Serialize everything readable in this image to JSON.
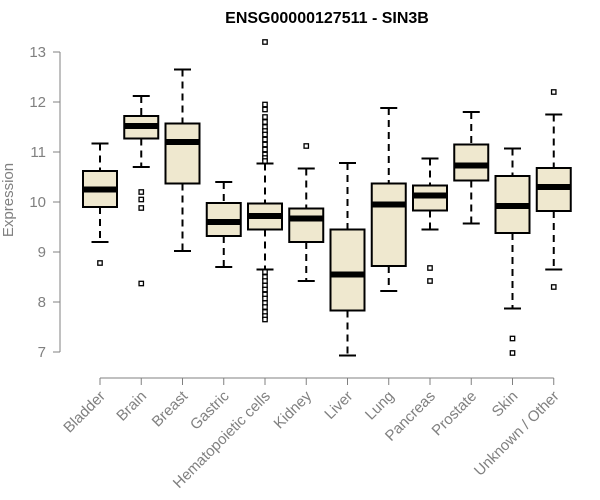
{
  "chart_data": {
    "type": "boxplot",
    "title": "ENSG00000127511 - SIN3B",
    "xlabel": "",
    "ylabel": "Expression",
    "ylim": [
      7,
      13
    ],
    "yticks": [
      7,
      8,
      9,
      10,
      11,
      12,
      13
    ],
    "colors": {
      "box_fill": "#efe8cf",
      "box_stroke": "#000000",
      "axis": "#808080"
    },
    "categories": [
      "Bladder",
      "Brain",
      "Breast",
      "Gastric",
      "Hematopoietic cells",
      "Kidney",
      "Liver",
      "Lung",
      "Pancreas",
      "Prostate",
      "Skin",
      "Unknown / Other"
    ],
    "boxes": [
      {
        "name": "Bladder",
        "whisker_low": 9.2,
        "q1": 9.9,
        "median": 10.25,
        "q3": 10.62,
        "whisker_high": 11.17,
        "outliers": [
          8.78
        ]
      },
      {
        "name": "Brain",
        "whisker_low": 10.7,
        "q1": 11.27,
        "median": 11.52,
        "q3": 11.72,
        "whisker_high": 12.12,
        "outliers": [
          10.2,
          10.05,
          9.88,
          8.37
        ]
      },
      {
        "name": "Breast",
        "whisker_low": 9.02,
        "q1": 10.37,
        "median": 11.2,
        "q3": 11.57,
        "whisker_high": 12.65,
        "outliers": []
      },
      {
        "name": "Gastric",
        "whisker_low": 8.7,
        "q1": 9.32,
        "median": 9.6,
        "q3": 9.98,
        "whisker_high": 10.4,
        "outliers": []
      },
      {
        "name": "Hematopoietic cells",
        "whisker_low": 8.65,
        "q1": 9.45,
        "median": 9.72,
        "q3": 9.97,
        "whisker_high": 10.77,
        "outliers": [
          13.2,
          11.95,
          11.85,
          11.7,
          11.6,
          11.5,
          11.42,
          11.35,
          11.25,
          11.15,
          11.05,
          10.95,
          10.88,
          10.82,
          8.6,
          8.5,
          8.42,
          8.33,
          8.25,
          8.15,
          8.07,
          7.98,
          7.9,
          7.8,
          7.72,
          7.65
        ]
      },
      {
        "name": "Kidney",
        "whisker_low": 8.42,
        "q1": 9.2,
        "median": 9.67,
        "q3": 9.87,
        "whisker_high": 10.67,
        "outliers": [
          11.12
        ]
      },
      {
        "name": "Liver",
        "whisker_low": 6.93,
        "q1": 7.83,
        "median": 8.55,
        "q3": 9.45,
        "whisker_high": 10.78,
        "outliers": []
      },
      {
        "name": "Lung",
        "whisker_low": 8.22,
        "q1": 8.72,
        "median": 9.95,
        "q3": 10.37,
        "whisker_high": 11.88,
        "outliers": []
      },
      {
        "name": "Pancreas",
        "whisker_low": 9.45,
        "q1": 9.83,
        "median": 10.13,
        "q3": 10.33,
        "whisker_high": 10.87,
        "outliers": [
          8.68,
          8.42
        ]
      },
      {
        "name": "Prostate",
        "whisker_low": 9.57,
        "q1": 10.43,
        "median": 10.73,
        "q3": 11.15,
        "whisker_high": 11.8,
        "outliers": []
      },
      {
        "name": "Skin",
        "whisker_low": 7.87,
        "q1": 9.38,
        "median": 9.92,
        "q3": 10.52,
        "whisker_high": 11.07,
        "outliers": [
          7.27,
          6.98
        ]
      },
      {
        "name": "Unknown / Other",
        "whisker_low": 8.65,
        "q1": 9.82,
        "median": 10.3,
        "q3": 10.68,
        "whisker_high": 11.75,
        "outliers": [
          12.2,
          8.3
        ]
      }
    ]
  }
}
